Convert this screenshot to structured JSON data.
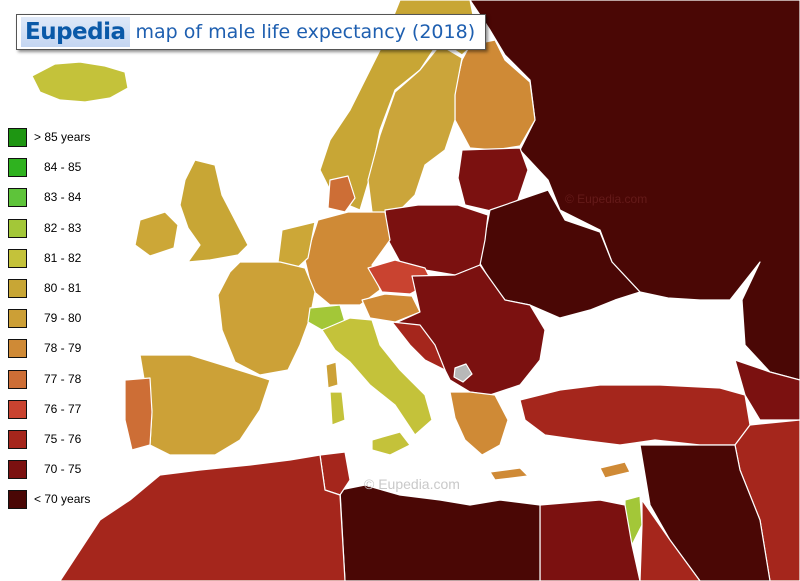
{
  "header": {
    "brand": "Eupedia",
    "title": "map of male life expectancy (2018)"
  },
  "legend": {
    "items": [
      {
        "label": "> 85 years",
        "color": "#1e9612"
      },
      {
        "label": "84 - 85",
        "color": "#2fb21f"
      },
      {
        "label": "83 - 84",
        "color": "#5ec43a"
      },
      {
        "label": "82 - 83",
        "color": "#a3c738"
      },
      {
        "label": "81 - 82",
        "color": "#c4c23a"
      },
      {
        "label": "80 - 81",
        "color": "#c8a635"
      },
      {
        "label": "79 - 80",
        "color": "#cc9f36"
      },
      {
        "label": "78 - 79",
        "color": "#cf8a36"
      },
      {
        "label": "77 - 78",
        "color": "#cd6e36"
      },
      {
        "label": "76 - 77",
        "color": "#c94330"
      },
      {
        "label": "75 - 76",
        "color": "#a5261c"
      },
      {
        "label": "70 - 75",
        "color": "#7b1110"
      },
      {
        "label": "< 70 years",
        "color": "#4a0705"
      }
    ]
  },
  "watermarks": {
    "center": "©  Eupedia.com",
    "east": "©  Eupedia.com"
  },
  "map_colors": {
    "sea": "#ffffff",
    "border": "#ffffff",
    "no_data": "#b8b8b8"
  }
}
